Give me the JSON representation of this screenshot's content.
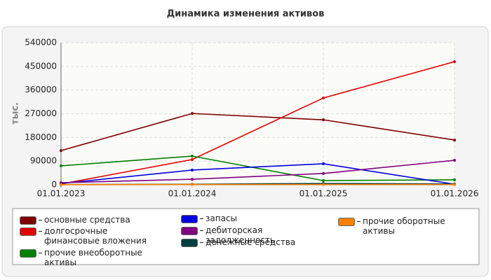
{
  "chart_data": {
    "type": "line",
    "title": "Динамика изменения активов",
    "y_label": "тыс.",
    "categories": [
      "01.01.2023",
      "01.01.2024",
      "01.01.2025",
      "01.01.2026"
    ],
    "ylim": [
      0,
      540000
    ],
    "yticks": [
      0,
      90000,
      180000,
      270000,
      360000,
      450000,
      540000
    ],
    "grid": true,
    "series": [
      {
        "name": "основные средства",
        "color": "#800000",
        "values": [
          130000,
          271000,
          247000,
          170000
        ]
      },
      {
        "name": "долгосрочные финансовые вложения",
        "color": "#e00000",
        "values": [
          3000,
          96000,
          330000,
          468000
        ]
      },
      {
        "name": "прочие внеоборотные активы",
        "color": "#008000",
        "values": [
          72000,
          109000,
          16000,
          19000
        ]
      },
      {
        "name": "запасы",
        "color": "#0000e0",
        "values": [
          5000,
          56000,
          80000,
          2000
        ]
      },
      {
        "name": "дебиторская задолженность",
        "color": "#800080",
        "values": [
          8000,
          21000,
          43000,
          93000
        ]
      },
      {
        "name": "денежные средства",
        "color": "#004040",
        "values": [
          1000,
          2000,
          5000,
          3000
        ]
      },
      {
        "name": "прочие оборотные активы",
        "color": "#ff8000",
        "values": [
          500,
          1000,
          1000,
          1000
        ]
      }
    ]
  }
}
